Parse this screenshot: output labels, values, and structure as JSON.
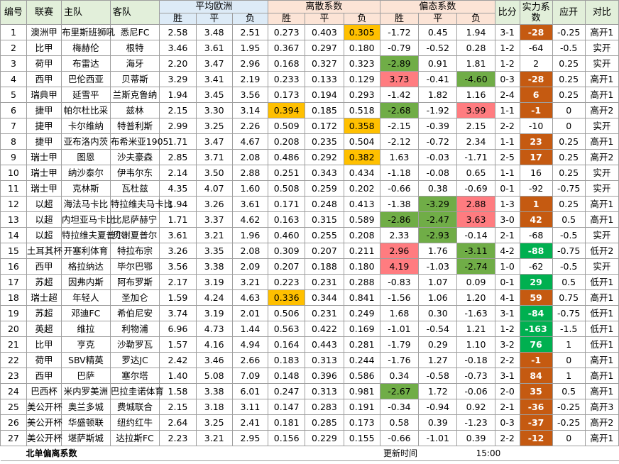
{
  "headers": {
    "idx": "编号",
    "league": "联赛",
    "home": "主队",
    "away": "客队",
    "avg_group": "平均欧洲",
    "disp_group": "离散系数",
    "skew_group": "偏态系数",
    "score": "比分",
    "power": "实力系数",
    "spread": "应开",
    "compare": "对比",
    "win": "胜",
    "draw": "平",
    "loss": "负"
  },
  "rows": [
    {
      "idx": "1",
      "league": "澳洲甲",
      "home": "布里斯班狮吼",
      "away": "悉尼FC",
      "aw": "2.58",
      "ad": "3.48",
      "al": "2.51",
      "dw": "0.273",
      "dd": "0.403",
      "dl": "0.305",
      "sw": "-1.72",
      "sd": "0.45",
      "sl": "1.94",
      "score": "3-1",
      "power": "-28",
      "spread": "-0.25",
      "cmp": "高开1",
      "hl": {
        "dl": "y"
      },
      "pw": "neg"
    },
    {
      "idx": "2",
      "league": "比甲",
      "home": "梅赫伦",
      "away": "根特",
      "aw": "3.46",
      "ad": "3.61",
      "al": "1.95",
      "dw": "0.367",
      "dd": "0.297",
      "dl": "0.180",
      "sw": "-0.79",
      "sd": "-0.52",
      "sl": "0.28",
      "score": "1-2",
      "power": "-64",
      "spread": "-0.5",
      "cmp": "实开",
      "hl": {},
      "pw": "plain"
    },
    {
      "idx": "3",
      "league": "荷甲",
      "home": "布雷达",
      "away": "海牙",
      "aw": "2.20",
      "ad": "3.47",
      "al": "2.96",
      "dw": "0.168",
      "dd": "0.327",
      "dl": "0.323",
      "sw": "-2.89",
      "sd": "0.91",
      "sl": "1.81",
      "score": "1-2",
      "power": "2",
      "spread": "0.25",
      "cmp": "实开",
      "hl": {
        "sw": "g"
      },
      "pw": "plain"
    },
    {
      "idx": "4",
      "league": "西甲",
      "home": "巴伦西亚",
      "away": "贝蒂斯",
      "aw": "3.29",
      "ad": "3.41",
      "al": "2.19",
      "dw": "0.233",
      "dd": "0.133",
      "dl": "0.129",
      "sw": "3.73",
      "sd": "-0.41",
      "sl": "-4.60",
      "score": "0-3",
      "power": "-28",
      "spread": "0.25",
      "cmp": "高开1",
      "hl": {
        "sw": "r",
        "sl": "g"
      },
      "pw": "neg"
    },
    {
      "idx": "5",
      "league": "瑞典甲",
      "home": "延雪平",
      "away": "兰斯克鲁纳",
      "aw": "1.94",
      "ad": "3.45",
      "al": "3.56",
      "dw": "0.173",
      "dd": "0.194",
      "dl": "0.293",
      "sw": "-1.42",
      "sd": "1.82",
      "sl": "1.16",
      "score": "2-4",
      "power": "6",
      "spread": "0.25",
      "cmp": "高开1",
      "hl": {},
      "pw": "pos"
    },
    {
      "idx": "6",
      "league": "捷甲",
      "home": "帕尔杜比采",
      "away": "兹林",
      "aw": "2.15",
      "ad": "3.30",
      "al": "3.14",
      "dw": "0.394",
      "dd": "0.185",
      "dl": "0.518",
      "sw": "-2.68",
      "sd": "-1.92",
      "sl": "3.99",
      "score": "1-1",
      "power": "-1",
      "spread": "0",
      "cmp": "高开2",
      "hl": {
        "dw": "y",
        "sw": "g",
        "sl": "r"
      },
      "pw": "neg"
    },
    {
      "idx": "7",
      "league": "捷甲",
      "home": "卡尔维纳",
      "away": "特普利斯",
      "aw": "2.99",
      "ad": "3.25",
      "al": "2.26",
      "dw": "0.509",
      "dd": "0.172",
      "dl": "0.358",
      "sw": "-2.15",
      "sd": "-0.39",
      "sl": "2.15",
      "score": "2-2",
      "power": "-10",
      "spread": "0",
      "cmp": "实开",
      "hl": {
        "dl": "y"
      },
      "pw": "plain"
    },
    {
      "idx": "8",
      "league": "捷甲",
      "home": "亚布洛内茨",
      "away": "布希米亚1905",
      "aw": "1.71",
      "ad": "3.47",
      "al": "4.67",
      "dw": "0.208",
      "dd": "0.235",
      "dl": "0.504",
      "sw": "-2.12",
      "sd": "-0.72",
      "sl": "2.34",
      "score": "1-1",
      "power": "23",
      "spread": "0.25",
      "cmp": "高开1",
      "hl": {},
      "pw": "pos"
    },
    {
      "idx": "9",
      "league": "瑞士甲",
      "home": "图恩",
      "away": "沙夫豪森",
      "aw": "2.85",
      "ad": "3.71",
      "al": "2.08",
      "dw": "0.486",
      "dd": "0.292",
      "dl": "0.382",
      "sw": "1.63",
      "sd": "-0.03",
      "sl": "-1.71",
      "score": "2-5",
      "power": "17",
      "spread": "0.25",
      "cmp": "高开2",
      "hl": {
        "dl": "y"
      },
      "pw": "pos"
    },
    {
      "idx": "10",
      "league": "瑞士甲",
      "home": "纳沙泰尔",
      "away": "伊韦尔东",
      "aw": "2.14",
      "ad": "3.50",
      "al": "2.88",
      "dw": "0.251",
      "dd": "0.343",
      "dl": "0.434",
      "sw": "-1.18",
      "sd": "-0.08",
      "sl": "0.65",
      "score": "1-1",
      "power": "16",
      "spread": "0.25",
      "cmp": "实开",
      "hl": {},
      "pw": "plain"
    },
    {
      "idx": "11",
      "league": "瑞士甲",
      "home": "克林斯",
      "away": "瓦杜兹",
      "aw": "4.35",
      "ad": "4.07",
      "al": "1.60",
      "dw": "0.508",
      "dd": "0.259",
      "dl": "0.202",
      "sw": "-0.66",
      "sd": "0.38",
      "sl": "-0.69",
      "score": "0-1",
      "power": "-92",
      "spread": "-0.75",
      "cmp": "实开",
      "hl": {},
      "pw": "plain"
    },
    {
      "idx": "12",
      "league": "以超",
      "home": "海法马卡比",
      "away": "特拉维夫马卡比",
      "aw": "1.94",
      "ad": "3.26",
      "al": "3.61",
      "dw": "0.171",
      "dd": "0.248",
      "dl": "0.413",
      "sw": "-1.38",
      "sd": "-3.29",
      "sl": "2.88",
      "score": "1-3",
      "power": "1",
      "spread": "0.25",
      "cmp": "高开1",
      "hl": {
        "sd": "g",
        "sl": "r"
      },
      "pw": "pos"
    },
    {
      "idx": "13",
      "league": "以超",
      "home": "内坦亚马卡比",
      "away": "比尼萨赫宁",
      "aw": "1.71",
      "ad": "3.37",
      "al": "4.62",
      "dw": "0.163",
      "dd": "0.315",
      "dl": "0.589",
      "sw": "-2.86",
      "sd": "-2.47",
      "sl": "3.63",
      "score": "3-0",
      "power": "42",
      "spread": "0.5",
      "cmp": "高开1",
      "hl": {
        "sw": "g",
        "sd": "g",
        "sl": "r"
      },
      "pw": "pos"
    },
    {
      "idx": "14",
      "league": "以超",
      "home": "特拉维夫夏普尔",
      "away": "贝谢夏普尔",
      "aw": "3.61",
      "ad": "3.21",
      "al": "1.96",
      "dw": "0.460",
      "dd": "0.255",
      "dl": "0.208",
      "sw": "2.33",
      "sd": "-2.93",
      "sl": "-0.14",
      "score": "2-1",
      "power": "-68",
      "spread": "-0.5",
      "cmp": "实开",
      "hl": {
        "sd": "g"
      },
      "pw": "plain"
    },
    {
      "idx": "15",
      "league": "土耳其杯",
      "home": "开塞利体育",
      "away": "特拉布宗",
      "aw": "3.26",
      "ad": "3.35",
      "al": "2.08",
      "dw": "0.309",
      "dd": "0.207",
      "dl": "0.211",
      "sw": "2.96",
      "sd": "1.76",
      "sl": "-3.11",
      "score": "4-2",
      "power": "-88",
      "spread": "-0.75",
      "cmp": "低开2",
      "hl": {
        "sw": "r",
        "sl": "g"
      },
      "pw": "grn"
    },
    {
      "idx": "16",
      "league": "西甲",
      "home": "格拉纳达",
      "away": "毕尔巴鄂",
      "aw": "3.56",
      "ad": "3.38",
      "al": "2.09",
      "dw": "0.207",
      "dd": "0.188",
      "dl": "0.180",
      "sw": "4.19",
      "sd": "-1.03",
      "sl": "-2.74",
      "score": "1-0",
      "power": "-62",
      "spread": "-0.5",
      "cmp": "实开",
      "hl": {
        "sw": "r",
        "sl": "g"
      },
      "pw": "plain"
    },
    {
      "idx": "17",
      "league": "苏超",
      "home": "因弗内斯",
      "away": "阿布罗斯",
      "aw": "2.17",
      "ad": "3.19",
      "al": "3.21",
      "dw": "0.223",
      "dd": "0.231",
      "dl": "0.288",
      "sw": "-0.83",
      "sd": "1.07",
      "sl": "0.09",
      "score": "0-1",
      "power": "29",
      "spread": "0.5",
      "cmp": "低开1",
      "hl": {},
      "pw": "grn"
    },
    {
      "idx": "18",
      "league": "瑞士超",
      "home": "年轻人",
      "away": "圣加仑",
      "aw": "1.59",
      "ad": "4.24",
      "al": "4.63",
      "dw": "0.336",
      "dd": "0.344",
      "dl": "0.841",
      "sw": "-1.56",
      "sd": "1.06",
      "sl": "1.20",
      "score": "4-1",
      "power": "59",
      "spread": "0.75",
      "cmp": "高开1",
      "hl": {
        "dw": "y"
      },
      "pw": "pos"
    },
    {
      "idx": "19",
      "league": "苏超",
      "home": "邓迪FC",
      "away": "希伯尼安",
      "aw": "3.74",
      "ad": "3.19",
      "al": "2.01",
      "dw": "0.506",
      "dd": "0.231",
      "dl": "0.249",
      "sw": "1.68",
      "sd": "0.30",
      "sl": "-1.63",
      "score": "3-1",
      "power": "-84",
      "spread": "-0.75",
      "cmp": "低开1",
      "hl": {},
      "pw": "grn"
    },
    {
      "idx": "20",
      "league": "英超",
      "home": "维拉",
      "away": "利物浦",
      "aw": "6.96",
      "ad": "4.73",
      "al": "1.44",
      "dw": "0.563",
      "dd": "0.422",
      "dl": "0.169",
      "sw": "-1.01",
      "sd": "-0.54",
      "sl": "1.21",
      "score": "1-2",
      "power": "-163",
      "spread": "-1.5",
      "cmp": "低开1",
      "hl": {},
      "pw": "grn"
    },
    {
      "idx": "21",
      "league": "比甲",
      "home": "亨克",
      "away": "沙勒罗瓦",
      "aw": "1.57",
      "ad": "4.16",
      "al": "4.94",
      "dw": "0.164",
      "dd": "0.443",
      "dl": "0.281",
      "sw": "-1.79",
      "sd": "0.29",
      "sl": "1.10",
      "score": "3-2",
      "power": "76",
      "spread": "1",
      "cmp": "低开1",
      "hl": {},
      "pw": "grn"
    },
    {
      "idx": "22",
      "league": "荷甲",
      "home": "SBV精英",
      "away": "罗达JC",
      "aw": "2.42",
      "ad": "3.46",
      "al": "2.66",
      "dw": "0.183",
      "dd": "0.313",
      "dl": "0.244",
      "sw": "-1.76",
      "sd": "1.27",
      "sl": "-0.18",
      "score": "2-2",
      "power": "-1",
      "spread": "0",
      "cmp": "高开1",
      "hl": {},
      "pw": "neg"
    },
    {
      "idx": "23",
      "league": "西甲",
      "home": "巴萨",
      "away": "塞尔塔",
      "aw": "1.40",
      "ad": "5.08",
      "al": "7.09",
      "dw": "0.148",
      "dd": "0.396",
      "dl": "0.586",
      "sw": "0.34",
      "sd": "-0.58",
      "sl": "-0.73",
      "score": "3-1",
      "power": "84",
      "spread": "1",
      "cmp": "高开1",
      "hl": {},
      "pw": "pos"
    },
    {
      "idx": "24",
      "league": "巴西杯",
      "home": "米内罗美洲",
      "away": "巴拉圭诺体育",
      "aw": "1.58",
      "ad": "3.38",
      "al": "6.01",
      "dw": "0.247",
      "dd": "0.313",
      "dl": "0.981",
      "sw": "-2.67",
      "sd": "1.72",
      "sl": "-0.06",
      "score": "2-0",
      "power": "35",
      "spread": "0.5",
      "cmp": "高开1",
      "hl": {
        "sw": "g"
      },
      "pw": "pos"
    },
    {
      "idx": "25",
      "league": "美公开杯",
      "home": "奥兰多城",
      "away": "费城联合",
      "aw": "2.15",
      "ad": "3.18",
      "al": "3.11",
      "dw": "0.147",
      "dd": "0.283",
      "dl": "0.191",
      "sw": "-0.34",
      "sd": "-0.94",
      "sl": "0.92",
      "score": "2-1",
      "power": "-36",
      "spread": "-0.25",
      "cmp": "高开3",
      "hl": {},
      "pw": "neg"
    },
    {
      "idx": "26",
      "league": "美公开杯",
      "home": "华盛顿联",
      "away": "纽约红牛",
      "aw": "2.64",
      "ad": "3.25",
      "al": "2.41",
      "dw": "0.181",
      "dd": "0.285",
      "dl": "0.173",
      "sw": "0.58",
      "sd": "0.39",
      "sl": "-1.23",
      "score": "0-3",
      "power": "-37",
      "spread": "-0.25",
      "cmp": "高开2",
      "hl": {},
      "pw": "neg"
    },
    {
      "idx": "27",
      "league": "美公开杯",
      "home": "堪萨斯城",
      "away": "达拉斯FC",
      "aw": "2.23",
      "ad": "3.21",
      "al": "2.95",
      "dw": "0.156",
      "dd": "0.229",
      "dl": "0.155",
      "sw": "-0.66",
      "sd": "-1.01",
      "sl": "0.39",
      "score": "2-2",
      "power": "-12",
      "spread": "0",
      "cmp": "高开1",
      "hl": {},
      "pw": "neg"
    }
  ],
  "footer": {
    "title": "北单偏离系数",
    "update_label": "更新时间",
    "update_time": "15:00"
  },
  "colors": {
    "yellow": "#ffc000",
    "green": "#70ad47",
    "red": "#ff7c80",
    "power_brown": "#c55a11",
    "power_green": "#00b050"
  }
}
